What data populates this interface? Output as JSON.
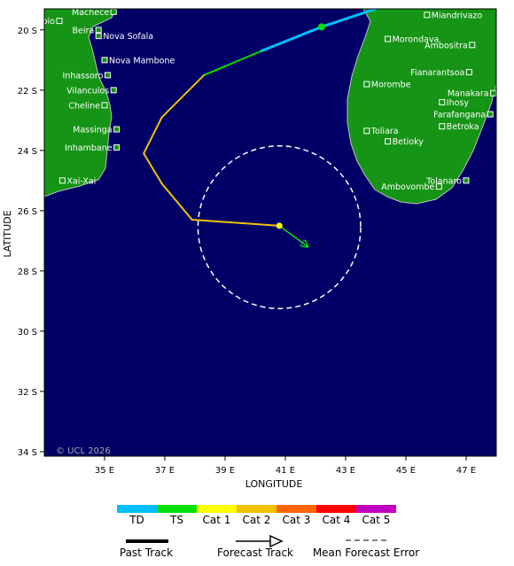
{
  "axes": {
    "xlabel": "LONGITUDE",
    "ylabel": "LATITUDE",
    "xlim": [
      33.0,
      48.0
    ],
    "ylim": [
      -34.15,
      -19.3
    ],
    "xticks": [
      35,
      37,
      39,
      41,
      43,
      45,
      47
    ],
    "xtick_labels": [
      "35 E",
      "37 E",
      "39 E",
      "41 E",
      "43 E",
      "45 E",
      "47 E"
    ],
    "yticks": [
      -20,
      -22,
      -24,
      -26,
      -28,
      -30,
      -32,
      -34
    ],
    "ytick_labels": [
      "20 S",
      "22 S",
      "24 S",
      "26 S",
      "28 S",
      "30 S",
      "32 S",
      "34 S"
    ]
  },
  "colors": {
    "ocean": "#000066",
    "land": "#159415",
    "coast": "#c0c0c0",
    "track": "#f2c200",
    "cat1": "#ffff00",
    "ts": "#00e000",
    "td": "#00bfff",
    "cone": "#ffffff"
  },
  "copyright": "© UCL 2026",
  "cities": [
    {
      "name": "Machece",
      "lon": 35.3,
      "lat": -19.4,
      "anchor": "end"
    },
    {
      "name": "Chimoio",
      "lon": 33.5,
      "lat": -19.7,
      "anchor": "end"
    },
    {
      "name": "Beira",
      "lon": 34.8,
      "lat": -20.0,
      "anchor": "end"
    },
    {
      "name": "Nova Sofala",
      "lon": 34.8,
      "lat": -20.2,
      "anchor": "start"
    },
    {
      "name": "Nova Mambone",
      "lon": 35.0,
      "lat": -21.0,
      "anchor": "start"
    },
    {
      "name": "Inhassoro",
      "lon": 35.1,
      "lat": -21.5,
      "anchor": "end"
    },
    {
      "name": "Vilanculos",
      "lon": 35.3,
      "lat": -22.0,
      "anchor": "end"
    },
    {
      "name": "Cheline",
      "lon": 35.0,
      "lat": -22.5,
      "anchor": "end"
    },
    {
      "name": "Massinga",
      "lon": 35.4,
      "lat": -23.3,
      "anchor": "end"
    },
    {
      "name": "Inhambane",
      "lon": 35.4,
      "lat": -23.9,
      "anchor": "end"
    },
    {
      "name": "Xai-Xai",
      "lon": 33.6,
      "lat": -25.0,
      "anchor": "start"
    },
    {
      "name": "Miandrivazo",
      "lon": 45.7,
      "lat": -19.5,
      "anchor": "start"
    },
    {
      "name": "Morondava",
      "lon": 44.4,
      "lat": -20.3,
      "anchor": "start"
    },
    {
      "name": "Ambositra",
      "lon": 47.2,
      "lat": -20.5,
      "anchor": "end"
    },
    {
      "name": "Fianarantsoa",
      "lon": 47.1,
      "lat": -21.4,
      "anchor": "end"
    },
    {
      "name": "Morombe",
      "lon": 43.7,
      "lat": -21.8,
      "anchor": "start"
    },
    {
      "name": "Manakara",
      "lon": 47.9,
      "lat": -22.1,
      "anchor": "end"
    },
    {
      "name": "Ihosy",
      "lon": 46.2,
      "lat": -22.4,
      "anchor": "start"
    },
    {
      "name": "Farafangana",
      "lon": 47.8,
      "lat": -22.8,
      "anchor": "end"
    },
    {
      "name": "Betroka",
      "lon": 46.2,
      "lat": -23.2,
      "anchor": "start"
    },
    {
      "name": "Toliara",
      "lon": 43.7,
      "lat": -23.35,
      "anchor": "start"
    },
    {
      "name": "Betioky",
      "lon": 44.4,
      "lat": -23.7,
      "anchor": "start"
    },
    {
      "name": "Tolanaro",
      "lon": 47.0,
      "lat": -25.0,
      "anchor": "end"
    },
    {
      "name": "Ambovombe",
      "lon": 46.1,
      "lat": -25.2,
      "anchor": "end"
    }
  ],
  "track": {
    "past": [
      {
        "lon": 44.0,
        "lat": -19.3,
        "cat": "td"
      },
      {
        "lon": 42.2,
        "lat": -19.9,
        "cat": "td"
      },
      {
        "lon": 40.2,
        "lat": -20.7,
        "cat": "ts"
      },
      {
        "lon": 38.3,
        "lat": -21.5,
        "cat": "track"
      },
      {
        "lon": 36.9,
        "lat": -22.9,
        "cat": "track"
      },
      {
        "lon": 36.3,
        "lat": -24.1,
        "cat": "track"
      },
      {
        "lon": 36.9,
        "lat": -25.1,
        "cat": "track"
      },
      {
        "lon": 37.9,
        "lat": -26.3,
        "cat": "track"
      },
      {
        "lon": 40.8,
        "lat": -26.5,
        "cat": "track"
      }
    ],
    "ts_point": {
      "lon": 42.2,
      "lat": -19.9
    },
    "current": {
      "lon": 40.8,
      "lat": -26.5
    },
    "forecast_to": {
      "lon": 41.75,
      "lat": -27.2
    },
    "cone": {
      "lon": 40.8,
      "lat": -26.55,
      "r_lon": 2.7,
      "r_lat": 2.7
    }
  },
  "legend": {
    "categories": [
      {
        "label": "TD",
        "color": "#00bfff"
      },
      {
        "label": "TS",
        "color": "#00e000"
      },
      {
        "label": "Cat 1",
        "color": "#ffff00"
      },
      {
        "label": "Cat 2",
        "color": "#f2c200"
      },
      {
        "label": "Cat 3",
        "color": "#ff6600"
      },
      {
        "label": "Cat 4",
        "color": "#ff0000"
      },
      {
        "label": "Cat 5",
        "color": "#c000c0"
      }
    ],
    "past_track": "Past Track",
    "forecast_track": "Forecast Track",
    "mean_error": "Mean Forecast Error"
  }
}
